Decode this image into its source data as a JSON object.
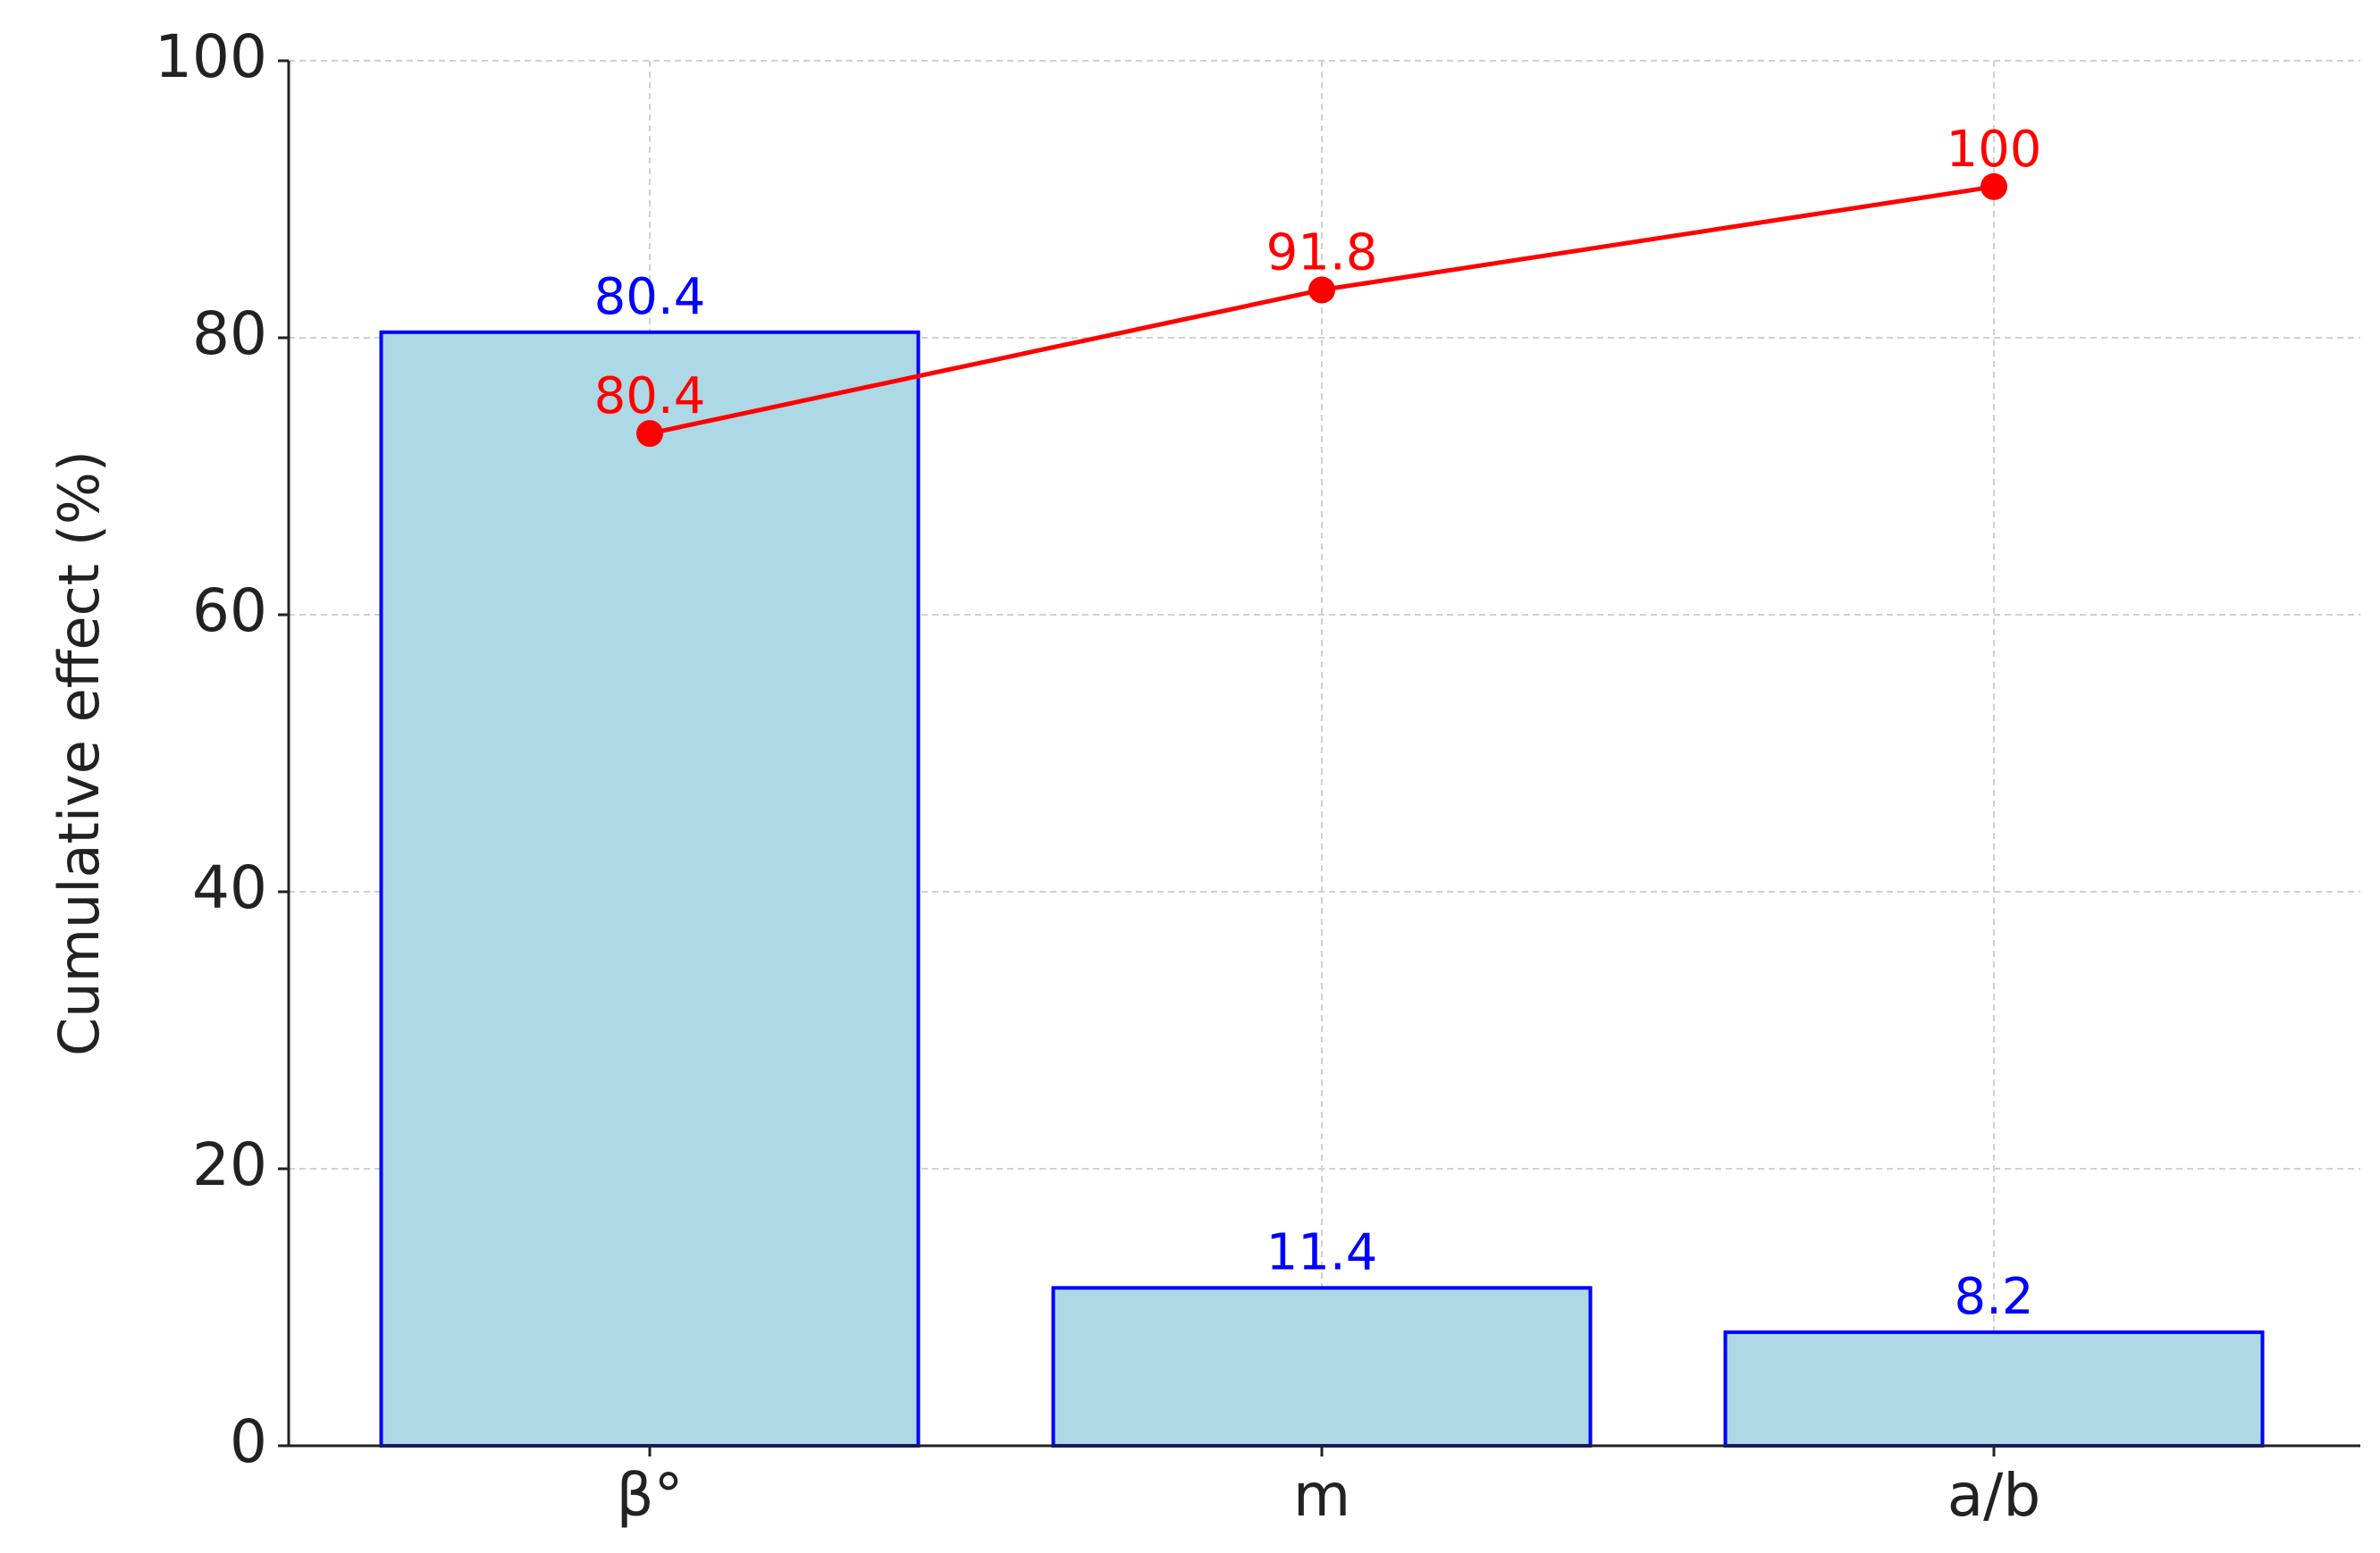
{
  "chart_data": {
    "type": "bar-line",
    "y_label": "Cumulative effect (%)",
    "categories": [
      "β°",
      "m",
      "a/b"
    ],
    "series": [
      {
        "type": "bar",
        "color": "#add8e6",
        "edgecolor": "#0000ff",
        "label_color": "#0000ff",
        "values": [
          80.4,
          11.4,
          8.2
        ]
      },
      {
        "type": "line",
        "axis": "y2",
        "color": "#ff0000",
        "label_color": "#ff0000",
        "values": [
          80.4,
          91.8,
          100
        ]
      }
    ],
    "ylim": [
      0,
      100
    ],
    "yticks": [
      0,
      20,
      40,
      60,
      80,
      100
    ],
    "y2lim": [
      0,
      110
    ],
    "grid": true
  }
}
